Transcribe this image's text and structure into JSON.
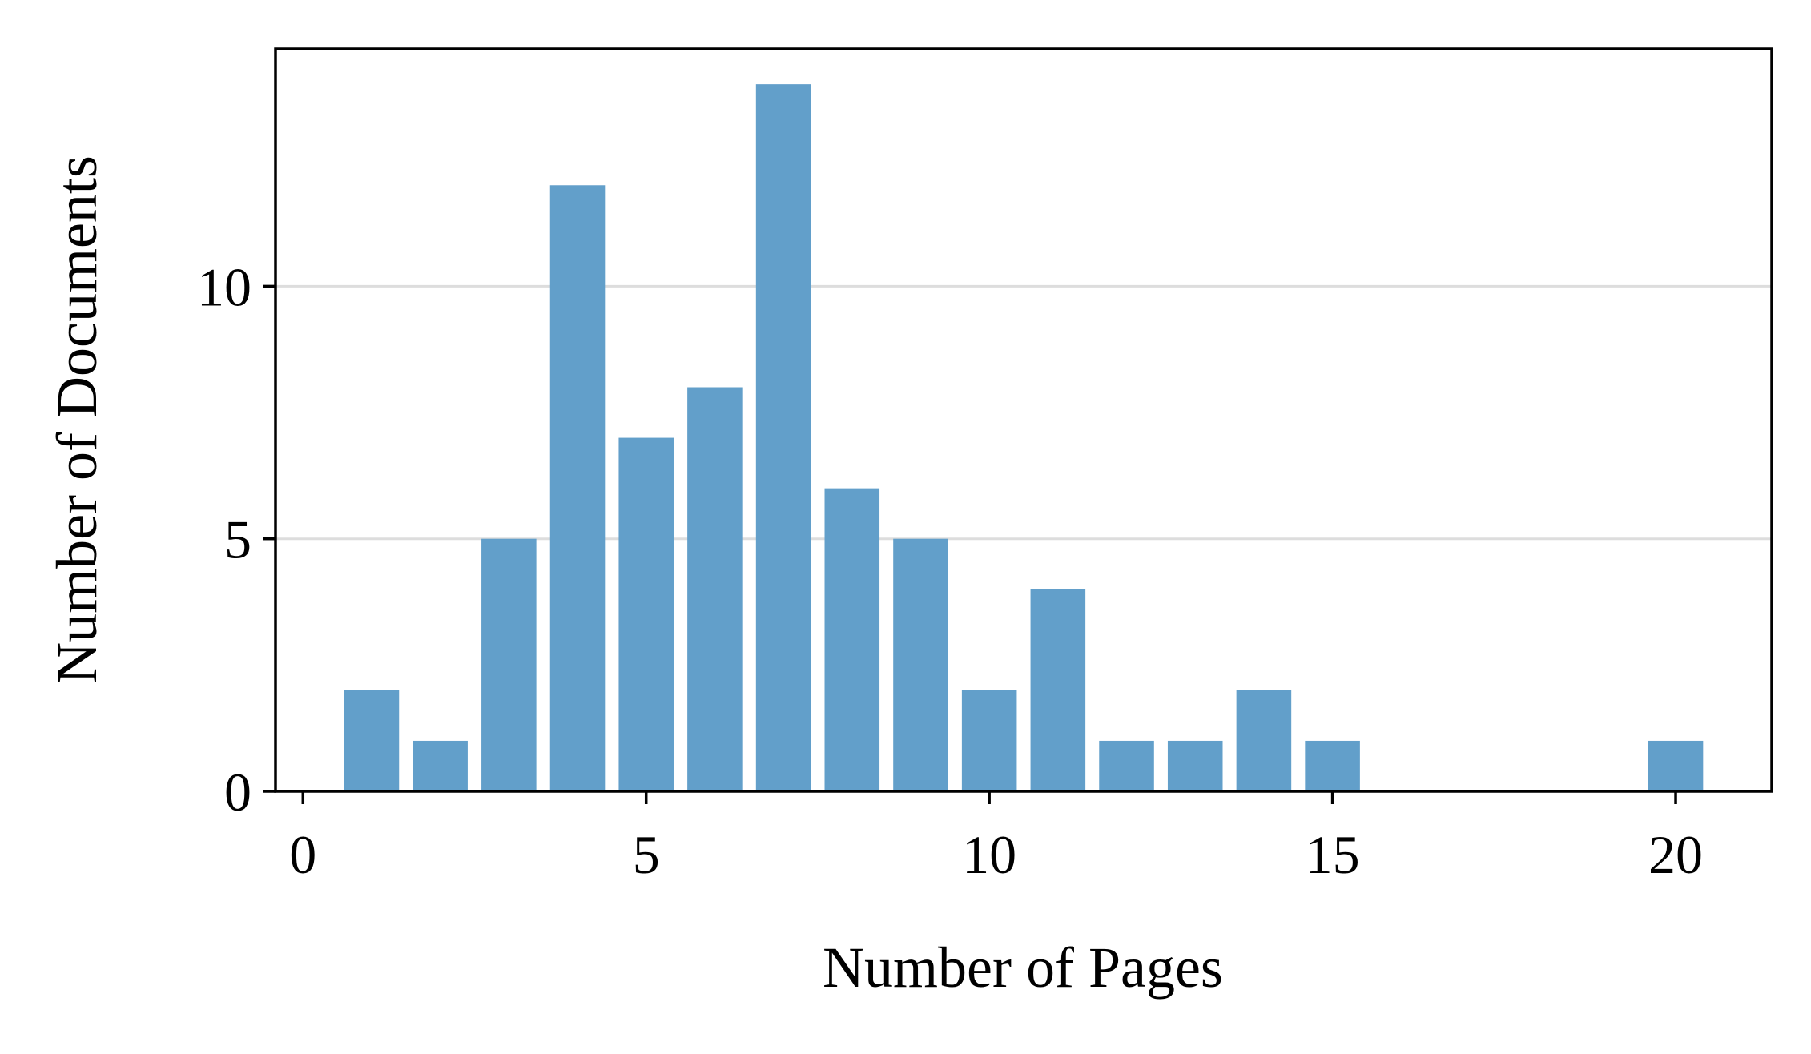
{
  "chart_data": {
    "type": "bar",
    "title": "",
    "xlabel": "Number of Pages",
    "ylabel": "Number of Documents",
    "x": [
      1,
      2,
      3,
      4,
      5,
      6,
      7,
      8,
      9,
      10,
      11,
      12,
      13,
      14,
      15,
      20
    ],
    "values": [
      2,
      1,
      5,
      12,
      7,
      8,
      14,
      6,
      5,
      2,
      4,
      1,
      1,
      2,
      1,
      1
    ],
    "xlim": [
      -0.4,
      21.4
    ],
    "ylim": [
      0,
      14.7
    ],
    "xticks": [
      0,
      5,
      10,
      15,
      20
    ],
    "xtick_labels": [
      "0",
      "5",
      "10",
      "15",
      "20"
    ],
    "yticks": [
      0,
      5,
      10
    ],
    "ytick_labels": [
      "0",
      "5",
      "10"
    ],
    "bar_width": 0.8,
    "grid": "horizontal",
    "legend": "none",
    "colors": {
      "bar": "#629fca",
      "grid": "#dddddd",
      "axis": "#000000"
    }
  }
}
